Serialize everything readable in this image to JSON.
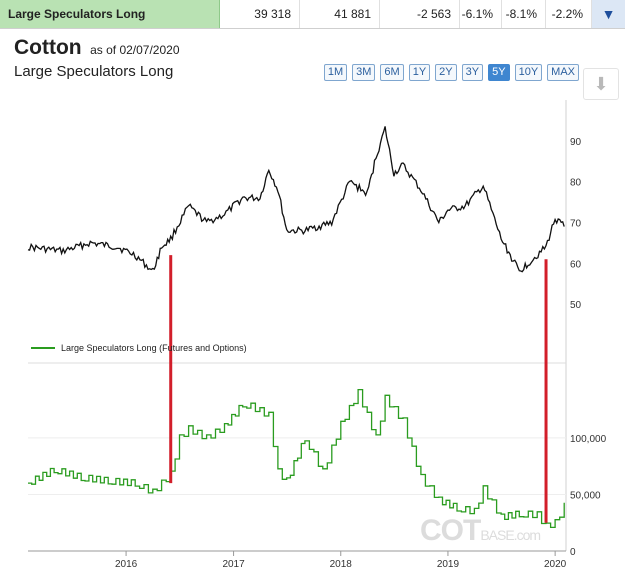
{
  "summary": {
    "label": "Large Speculators Long",
    "v1": "39 318",
    "v2": "41 881",
    "v3": "-2 563",
    "v4": "-6.1%",
    "v5": "-8.1%",
    "v6": "-2.2%",
    "expand_icon": "chevron-down-icon"
  },
  "header": {
    "title": "Cotton",
    "as_of": "as of 02/07/2020",
    "subtitle": "Large Speculators Long"
  },
  "ranges": [
    "1M",
    "3M",
    "6M",
    "1Y",
    "2Y",
    "3Y",
    "5Y",
    "10Y",
    "MAX"
  ],
  "active_range": "5Y",
  "download_icon": "download-icon",
  "watermark": {
    "main": "COT",
    "tail": "BASE.com"
  },
  "colors": {
    "price": "#111111",
    "positions": "#2a9c1f",
    "marker": "#d21e2a",
    "accent": "#3f86d0"
  },
  "chart_data": [
    {
      "type": "line",
      "title": "",
      "ylim": [
        40,
        100
      ],
      "yticks": [
        50,
        60,
        70,
        80,
        90
      ],
      "series": [
        {
          "x": [
            "2015-02",
            "2015-06",
            "2015-09",
            "2015-12",
            "2016-02",
            "2016-04",
            "2016-05",
            "2016-06",
            "2016-08",
            "2016-10",
            "2016-12",
            "2017-02",
            "2017-04",
            "2017-05",
            "2017-06",
            "2017-07",
            "2017-09",
            "2017-12",
            "2018-02",
            "2018-04",
            "2018-05",
            "2018-06",
            "2018-07",
            "2018-08",
            "2018-10",
            "2018-12",
            "2019-01",
            "2019-03",
            "2019-05",
            "2019-07",
            "2019-08",
            "2019-09",
            "2019-10",
            "2019-12",
            "2020-01",
            "2020-02"
          ],
          "values": [
            64,
            63,
            65,
            64,
            62,
            58,
            64,
            66,
            74,
            70,
            72,
            76,
            76,
            83,
            78,
            68,
            68,
            70,
            80,
            77,
            86,
            93,
            82,
            84,
            78,
            70,
            73,
            74,
            79,
            66,
            62,
            58,
            60,
            64,
            71,
            69
          ]
        }
      ]
    },
    {
      "type": "line",
      "ylim": [
        0,
        160000
      ],
      "yticks": [
        0,
        50000,
        100000
      ],
      "xticks": [
        "2016",
        "2017",
        "2018",
        "2019",
        "2020"
      ],
      "series": [
        {
          "name": "Large Speculators Long (Futures and Options)",
          "x": [
            "2015-02",
            "2015-05",
            "2015-08",
            "2015-11",
            "2016-02",
            "2016-04",
            "2016-05",
            "2016-06",
            "2016-07",
            "2016-08",
            "2016-10",
            "2016-12",
            "2017-02",
            "2017-03",
            "2017-05",
            "2017-06",
            "2017-07",
            "2017-09",
            "2017-11",
            "2018-01",
            "2018-03",
            "2018-04",
            "2018-05",
            "2018-06",
            "2018-08",
            "2018-10",
            "2018-12",
            "2019-02",
            "2019-04",
            "2019-05",
            "2019-07",
            "2019-09",
            "2019-11",
            "2019-12",
            "2020-01",
            "2020-02"
          ],
          "values": [
            60000,
            72000,
            65000,
            62000,
            60000,
            52000,
            60000,
            68000,
            100000,
            108000,
            100000,
            110000,
            130000,
            128000,
            120000,
            70000,
            62000,
            100000,
            70000,
            112000,
            140000,
            120000,
            100000,
            135000,
            115000,
            65000,
            45000,
            38000,
            35000,
            55000,
            30000,
            33000,
            32000,
            22000,
            25000,
            40000
          ]
        }
      ]
    }
  ]
}
